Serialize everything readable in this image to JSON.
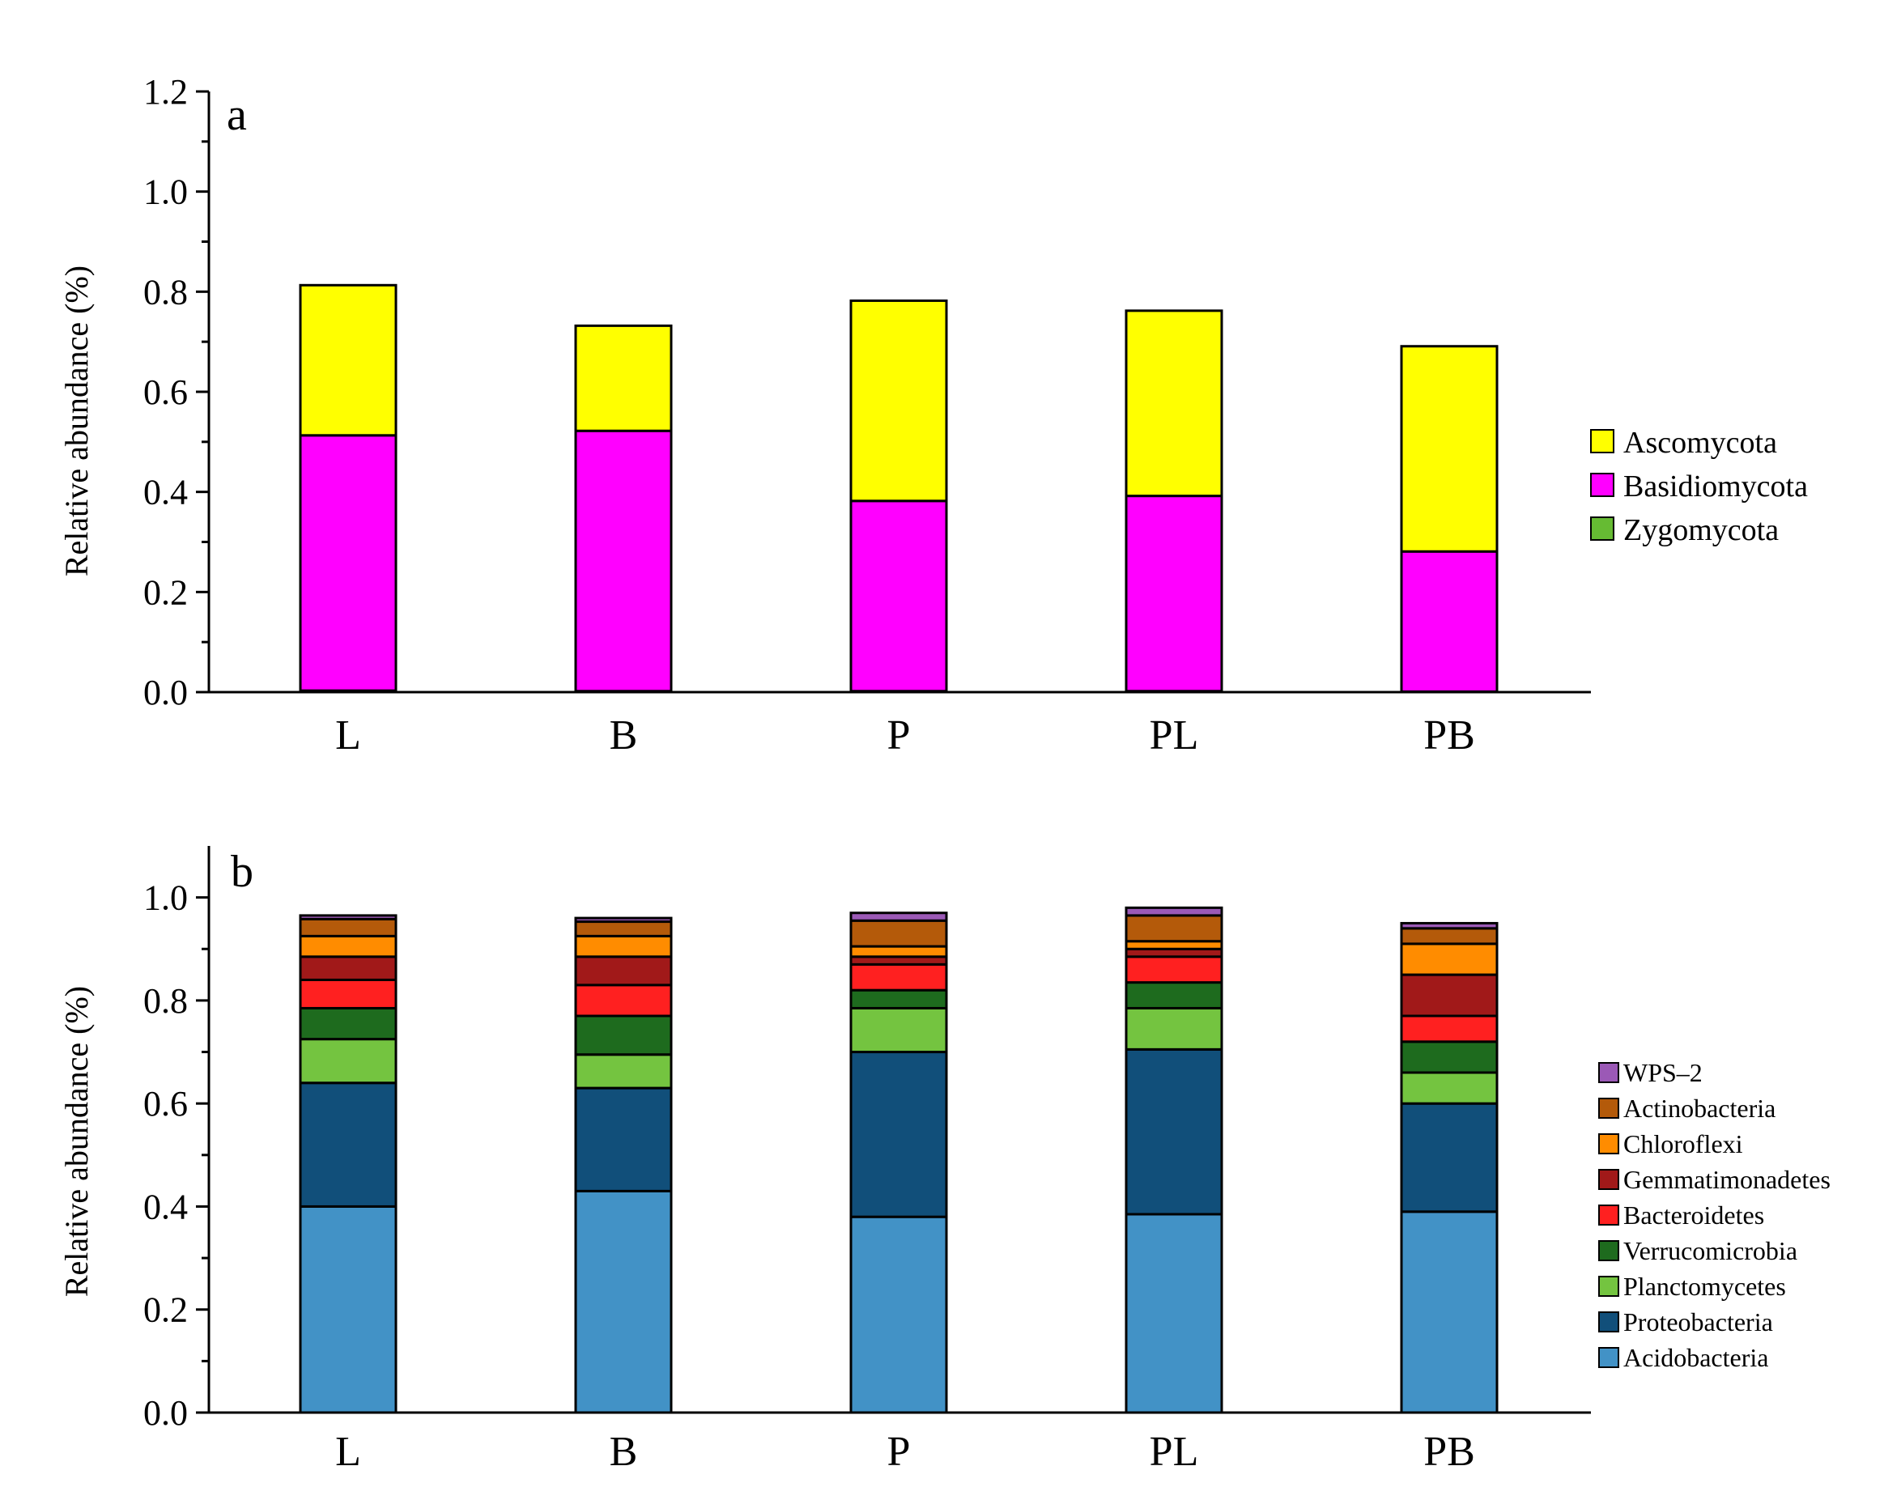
{
  "chart_data": [
    {
      "panel_label": "a",
      "type": "bar",
      "stacked": true,
      "categories": [
        "L",
        "B",
        "P",
        "PL",
        "PB"
      ],
      "ylabel": "Relative abundance (%)",
      "ylim": [
        0,
        1.2
      ],
      "yticks": [
        "0.0",
        "0.2",
        "0.4",
        "0.6",
        "0.8",
        "1.0",
        "1.2"
      ],
      "ytick_values": [
        0,
        0.2,
        0.4,
        0.6,
        0.8,
        1.0,
        1.2
      ],
      "legend_position": "right",
      "series": [
        {
          "name": "Zygomycota",
          "color": "#66bb33",
          "values": [
            0.003,
            0.002,
            0.002,
            0.002,
            0.001
          ]
        },
        {
          "name": "Basidiomycota",
          "color": "#ff00ff",
          "values": [
            0.51,
            0.52,
            0.38,
            0.39,
            0.28
          ]
        },
        {
          "name": "Ascomycota",
          "color": "#ffff00",
          "values": [
            0.3,
            0.21,
            0.4,
            0.37,
            0.41
          ]
        }
      ],
      "legend": [
        "Ascomycota",
        "Basidiomycota",
        "Zygomycota"
      ]
    },
    {
      "panel_label": "b",
      "type": "bar",
      "stacked": true,
      "categories": [
        "L",
        "B",
        "P",
        "PL",
        "PB"
      ],
      "ylabel": "Relative abundance (%)",
      "ylim": [
        0,
        1.1
      ],
      "yticks": [
        "0.0",
        "0.2",
        "0.4",
        "0.6",
        "0.8",
        "1.0"
      ],
      "ytick_values": [
        0,
        0.2,
        0.4,
        0.6,
        0.8,
        1.0
      ],
      "legend_position": "right",
      "series": [
        {
          "name": "Acidobacteria",
          "color": "#4292c6",
          "values": [
            0.4,
            0.43,
            0.38,
            0.385,
            0.39
          ]
        },
        {
          "name": "Proteobacteria",
          "color": "#114f7a",
          "values": [
            0.24,
            0.2,
            0.32,
            0.32,
            0.21
          ]
        },
        {
          "name": "Planctomycetes",
          "color": "#74c440",
          "values": [
            0.085,
            0.065,
            0.085,
            0.08,
            0.06
          ]
        },
        {
          "name": "Verrucomicrobia",
          "color": "#1e6b1e",
          "values": [
            0.06,
            0.075,
            0.035,
            0.05,
            0.06
          ]
        },
        {
          "name": "Bacteroidetes",
          "color": "#ff2020",
          "values": [
            0.055,
            0.06,
            0.05,
            0.05,
            0.05
          ]
        },
        {
          "name": "Gemmatimonadetes",
          "color": "#a11919",
          "values": [
            0.045,
            0.055,
            0.015,
            0.015,
            0.08
          ]
        },
        {
          "name": "Chloroflexi",
          "color": "#ff8c00",
          "values": [
            0.04,
            0.04,
            0.02,
            0.015,
            0.06
          ]
        },
        {
          "name": "Actinobacteria",
          "color": "#b45a0a",
          "values": [
            0.033,
            0.028,
            0.05,
            0.05,
            0.03
          ]
        },
        {
          "name": "WPS-2",
          "color": "#9b59b6",
          "values": [
            0.007,
            0.007,
            0.015,
            0.015,
            0.01
          ]
        }
      ],
      "legend": [
        "WPS–2",
        "Actinobacteria",
        "Chloroflexi",
        "Gemmatimonadetes",
        "Bacteroidetes",
        "Verrucomicrobia",
        "Planctomycetes",
        "Proteobacteria",
        "Acidobacteria"
      ]
    }
  ]
}
